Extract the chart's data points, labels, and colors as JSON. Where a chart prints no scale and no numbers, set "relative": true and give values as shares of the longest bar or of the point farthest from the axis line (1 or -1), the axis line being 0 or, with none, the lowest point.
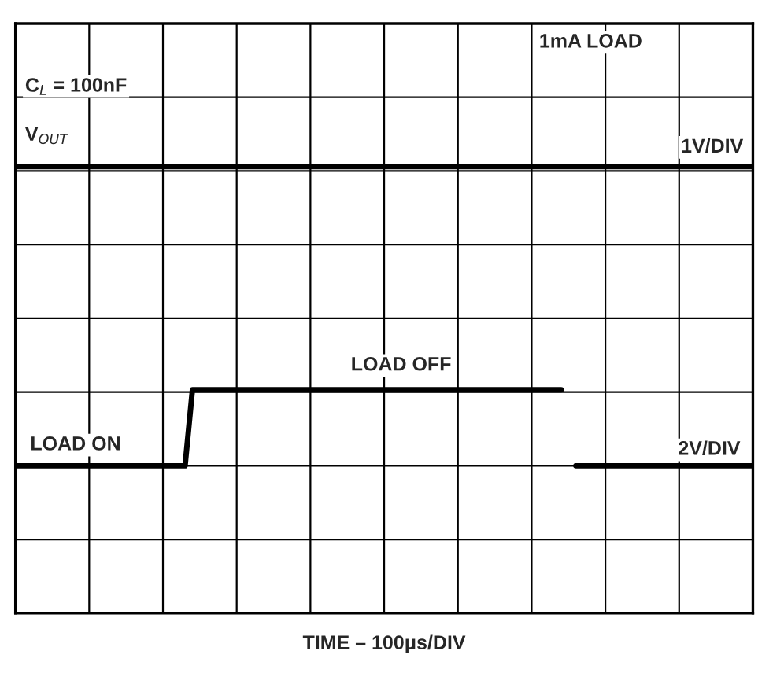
{
  "chart_data": {
    "type": "line",
    "relative": true,
    "grid": true,
    "xlabel": "TIME – 100μs/DIV",
    "categories": [
      null,
      null,
      null,
      null,
      null,
      null,
      null,
      null,
      null,
      null,
      null,
      null,
      null,
      null,
      null,
      null,
      null,
      null,
      null,
      null,
      null,
      null,
      null,
      null,
      null,
      null,
      null,
      null,
      null,
      null,
      null,
      null,
      null,
      null,
      null,
      null,
      null,
      null,
      null,
      null,
      null,
      null,
      null,
      null,
      null,
      null,
      null,
      null,
      null,
      null,
      null,
      null,
      null,
      null,
      null,
      null,
      null,
      null,
      null,
      null,
      null,
      null,
      null,
      null,
      null,
      null,
      null,
      null,
      null,
      null,
      null,
      null,
      null,
      null,
      null,
      null,
      null,
      null,
      null,
      null,
      null,
      null,
      null,
      null,
      null,
      null,
      null,
      null,
      null,
      null,
      null,
      null,
      null,
      null,
      null,
      null,
      null,
      null,
      null,
      null,
      null
    ],
    "series": [
      {
        "name": "V$_{OUT}$",
        "color": "#000000",
        "values": [
          1,
          1,
          1,
          1,
          1,
          1,
          1,
          1,
          1,
          1,
          1,
          1,
          1,
          1,
          1,
          1,
          1,
          1,
          1,
          1,
          1,
          1,
          1,
          1,
          1,
          1,
          1,
          1,
          1,
          1,
          1,
          1,
          1,
          1,
          1,
          1,
          1,
          1,
          1,
          1,
          1,
          1,
          1,
          1,
          1,
          1,
          1,
          1,
          1,
          1,
          1,
          1,
          1,
          1,
          1,
          1,
          1,
          1,
          1,
          1,
          1,
          1,
          1,
          1,
          1,
          1,
          1,
          1,
          1,
          1,
          1,
          1,
          1,
          1,
          1,
          1,
          1,
          1,
          1,
          1,
          1,
          1,
          1,
          1,
          1,
          1,
          1,
          1,
          1,
          1,
          1,
          1,
          1,
          1,
          1,
          1,
          1,
          1,
          1,
          1,
          1
        ]
      },
      {
        "color": "#000000",
        "values": [
          0.33,
          0.33,
          0.33,
          0.33,
          0.33,
          0.33,
          0.33,
          0.33,
          0.33,
          0.33,
          0.33,
          0.33,
          0.33,
          0.33,
          0.33,
          0.33,
          0.33,
          0.33,
          0.33,
          0.33,
          0.33,
          0.33,
          0.33,
          0.33,
          0.5,
          0.5,
          0.5,
          0.5,
          0.5,
          0.5,
          0.5,
          0.5,
          0.5,
          0.5,
          0.5,
          0.5,
          0.5,
          0.5,
          0.5,
          0.5,
          0.5,
          0.5,
          0.5,
          0.5,
          0.5,
          0.5,
          0.5,
          0.5,
          0.5,
          0.5,
          0.5,
          0.5,
          0.5,
          0.5,
          0.5,
          0.5,
          0.5,
          0.5,
          0.5,
          0.5,
          0.5,
          0.5,
          0.5,
          0.5,
          0.5,
          0.5,
          0.5,
          0.5,
          0.5,
          0.5,
          0.5,
          0.5,
          0.5,
          0.5,
          0.5,
          null,
          0.33,
          0.33,
          0.33,
          0.33,
          0.33,
          0.33,
          0.33,
          0.33,
          0.33,
          0.33,
          0.33,
          0.33,
          0.33,
          0.33,
          0.33,
          0.33,
          0.33,
          0.33,
          0.33,
          0.33,
          0.33,
          0.33,
          0.33,
          0.33,
          0.33
        ]
      }
    ],
    "annotations": [
      "C$_{L}$ = 100nF",
      "1mA LOAD",
      "1V/DIV",
      "LOAD OFF",
      "LOAD ON",
      "2V/DIV"
    ]
  }
}
